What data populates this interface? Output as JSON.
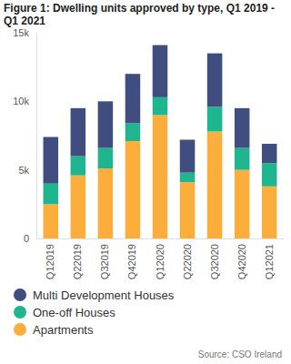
{
  "chart_data": {
    "type": "bar",
    "stacked": true,
    "title": "Figure 1: Dwelling units approved by type, Q1 2019 - Q1 2021",
    "source": "Source: CSO Ireland",
    "categories": [
      "Q12019",
      "Q22019",
      "Q32019",
      "Q42019",
      "Q12020",
      "Q22020",
      "Q32020",
      "Q42020",
      "Q12021"
    ],
    "series": [
      {
        "name": "Apartments",
        "color": "#fbae3c",
        "values": [
          2500,
          4600,
          5100,
          7100,
          9000,
          4100,
          7800,
          5000,
          3800
        ]
      },
      {
        "name": "One-off Houses",
        "color": "#1fb58f",
        "values": [
          1500,
          1400,
          1500,
          1300,
          1300,
          700,
          1800,
          1600,
          1700
        ]
      },
      {
        "name": "Multi Development Houses",
        "color": "#3f4d7f",
        "values": [
          3400,
          3500,
          3400,
          3600,
          3800,
          2400,
          3900,
          2900,
          1400
        ]
      }
    ],
    "ylim": [
      0,
      15000
    ],
    "yticks": [
      {
        "value": 0,
        "label": "0"
      },
      {
        "value": 5000,
        "label": "5k"
      },
      {
        "value": 10000,
        "label": "10k"
      },
      {
        "value": 15000,
        "label": "15k"
      }
    ],
    "grid": false,
    "legend": "bottom"
  }
}
